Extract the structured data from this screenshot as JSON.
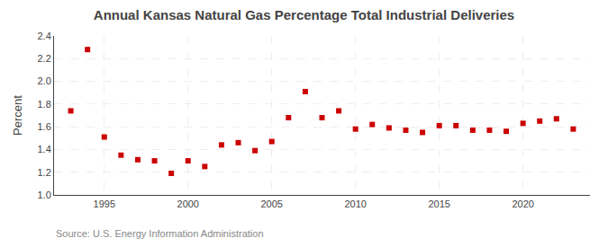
{
  "chart_data": {
    "type": "scatter",
    "title": "Annual Kansas Natural Gas Percentage Total Industrial Deliveries",
    "ylabel": "Percent",
    "annotations": [
      "Source: U.S. Energy Information Administration"
    ],
    "x": [
      1993,
      1994,
      1995,
      1996,
      1997,
      1998,
      1999,
      2000,
      2001,
      2002,
      2003,
      2004,
      2005,
      2006,
      2007,
      2008,
      2009,
      2010,
      2011,
      2012,
      2013,
      2014,
      2015,
      2016,
      2017,
      2018,
      2019,
      2020,
      2021,
      2022,
      2023
    ],
    "values": [
      1.74,
      2.28,
      1.51,
      1.35,
      1.31,
      1.3,
      1.19,
      1.3,
      1.25,
      1.44,
      1.46,
      1.39,
      1.47,
      1.68,
      1.91,
      1.68,
      1.74,
      1.58,
      1.62,
      1.59,
      1.57,
      1.55,
      1.61,
      1.61,
      1.57,
      1.57,
      1.56,
      1.63,
      1.65,
      1.67,
      1.58
    ],
    "color": "#cc0000",
    "marker": "square",
    "xlim": [
      1992.0,
      2024.0
    ],
    "xticks": [
      1995,
      2000,
      2005,
      2010,
      2015,
      2020
    ],
    "ylim": [
      1.0,
      2.4
    ],
    "yticks": [
      {
        "value": 1.0,
        "label": "1.0"
      },
      1.2,
      1.4,
      1.6,
      1.8,
      {
        "value": 2.0,
        "label": "2.0"
      },
      2.2,
      2.4
    ],
    "grid": true
  }
}
